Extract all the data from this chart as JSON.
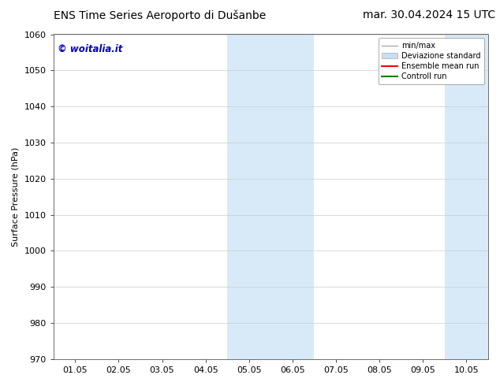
{
  "title_left": "ENS Time Series Aeroporto di Dušanbe",
  "title_right": "mar. 30.04.2024 15 UTC",
  "ylabel": "Surface Pressure (hPa)",
  "watermark": "© woitalia.it",
  "watermark_color": "#0000cc",
  "ylim": [
    970,
    1060
  ],
  "yticks": [
    970,
    980,
    990,
    1000,
    1010,
    1020,
    1030,
    1040,
    1050,
    1060
  ],
  "xlim_start": -0.5,
  "xlim_end": 9.5,
  "xtick_labels": [
    "01.05",
    "02.05",
    "03.05",
    "04.05",
    "05.05",
    "06.05",
    "07.05",
    "08.05",
    "09.05",
    "10.05"
  ],
  "xtick_positions": [
    0,
    1,
    2,
    3,
    4,
    5,
    6,
    7,
    8,
    9
  ],
  "shaded_bands": [
    {
      "x_start": 3.5,
      "x_end": 5.5,
      "color": "#d8eaf7"
    },
    {
      "x_start": 8.5,
      "x_end": 9.5,
      "color": "#d8eaf7"
    }
  ],
  "legend_entries": [
    {
      "label": "min/max",
      "color": "#aaaaaa",
      "style": "errorbar"
    },
    {
      "label": "Deviazione standard",
      "color": "#c8dff0",
      "style": "box"
    },
    {
      "label": "Ensemble mean run",
      "color": "#ff0000",
      "style": "line"
    },
    {
      "label": "Controll run",
      "color": "#008000",
      "style": "line"
    }
  ],
  "background_color": "#ffffff",
  "grid_color": "#cccccc",
  "title_fontsize": 10,
  "axis_fontsize": 8,
  "tick_fontsize": 8
}
